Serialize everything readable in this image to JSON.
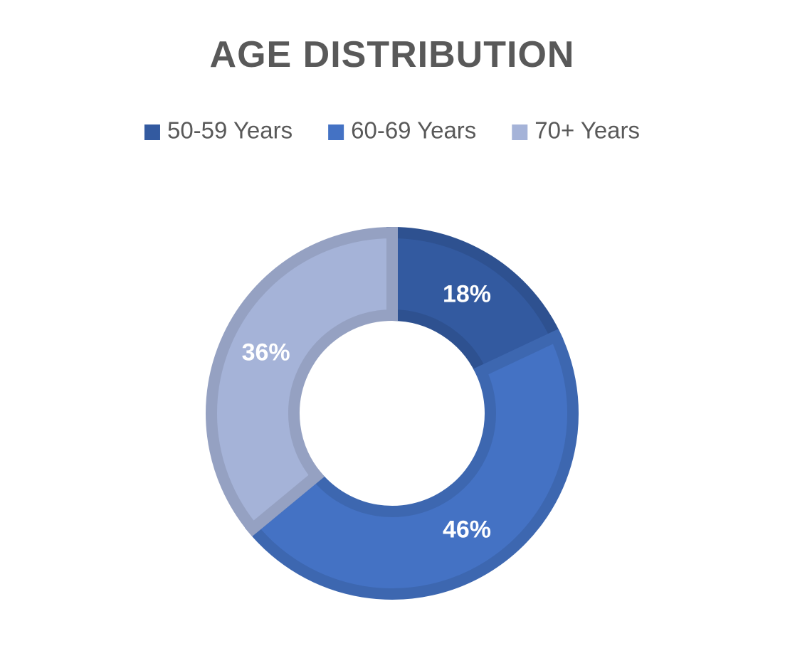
{
  "chart_data": {
    "type": "donut",
    "title": "AGE DISTRIBUTION",
    "categories": [
      "50-59 Years",
      "60-69 Years",
      "70+ Years"
    ],
    "values": [
      18,
      46,
      36
    ],
    "value_labels": [
      "18%",
      "46%",
      "36%"
    ],
    "colors": [
      "#335aa0",
      "#4472c4",
      "#a5b3d8"
    ],
    "legend": "top"
  }
}
